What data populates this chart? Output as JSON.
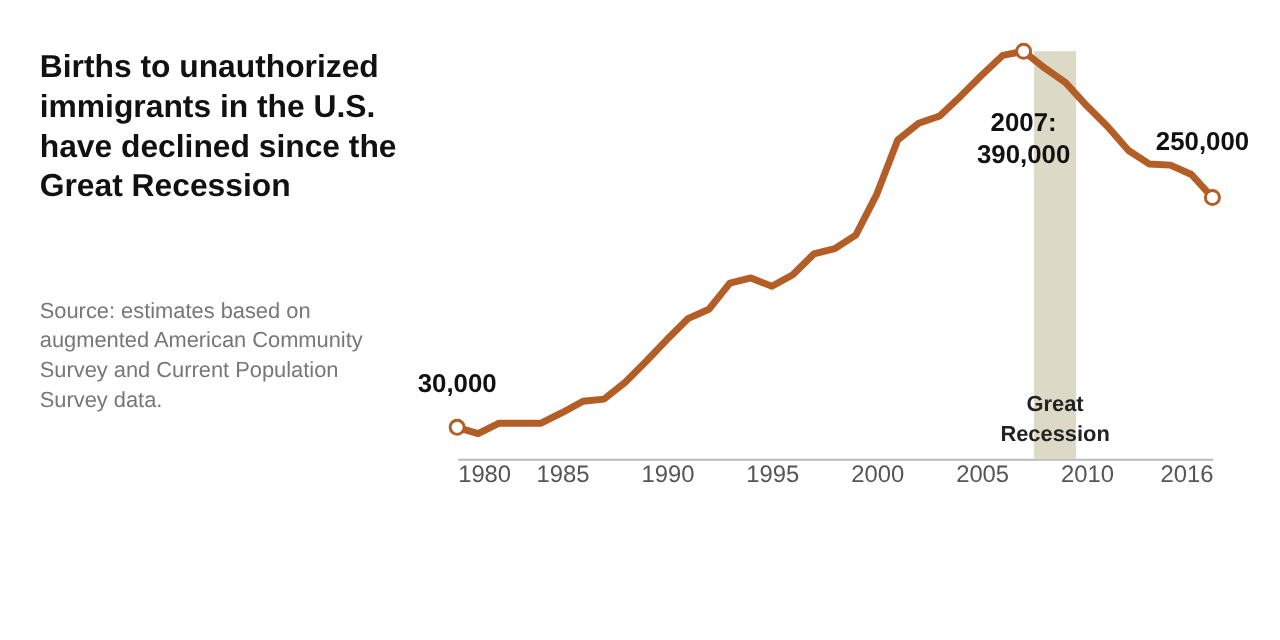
{
  "chart_data": {
    "type": "line",
    "title": "Births to unauthorized immigrants in the U.S. have declined since the Great Recession",
    "annotations": [
      "Source: estimates based on augmented American Community Survey and Current Population Survey data."
    ],
    "x": [
      1980,
      1981,
      1982,
      1983,
      1984,
      1985,
      1986,
      1987,
      1988,
      1989,
      1990,
      1991,
      1992,
      1993,
      1994,
      1995,
      1996,
      1997,
      1998,
      1999,
      2000,
      2001,
      2002,
      2003,
      2004,
      2005,
      2006,
      2007,
      2008,
      2009,
      2010,
      2011,
      2012,
      2013,
      2014,
      2015,
      2016
    ],
    "series": [
      {
        "color": "#b35e27",
        "values": [
          30000,
          24000,
          34000,
          34000,
          34000,
          44000,
          55000,
          57000,
          73000,
          93000,
          114000,
          134000,
          143000,
          168000,
          173000,
          165000,
          176000,
          196000,
          201000,
          214000,
          253000,
          305000,
          321000,
          328000,
          347000,
          367000,
          386000,
          390000,
          374000,
          360000,
          338000,
          318000,
          295000,
          282000,
          281000,
          272000,
          250000
        ],
        "value_labels": [
          "30,000",
          null,
          null,
          null,
          null,
          null,
          null,
          null,
          null,
          null,
          null,
          null,
          null,
          null,
          null,
          null,
          null,
          null,
          null,
          null,
          null,
          null,
          null,
          null,
          null,
          null,
          null,
          "2007:\n390,000",
          null,
          null,
          null,
          null,
          null,
          null,
          null,
          null,
          "250,000"
        ]
      }
    ],
    "xlim": [
      1980,
      2016
    ],
    "xticks": [
      1980,
      1985,
      1990,
      1995,
      2000,
      2005,
      2010,
      2016
    ],
    "tick_labels": "x",
    "grid": false,
    "marker": "none",
    "line_style": "solid",
    "bands": [
      {
        "axis": "x",
        "from": 2007.5,
        "to": 2009.5,
        "label": "Great\nRecession",
        "color": "#dcd9c6"
      }
    ]
  }
}
